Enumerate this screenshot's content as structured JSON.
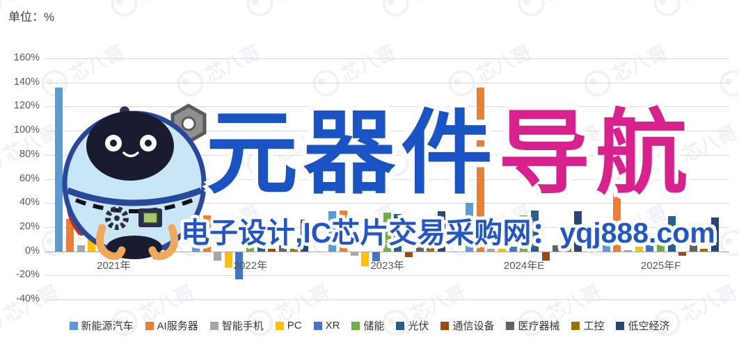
{
  "header": {
    "unit_label": "单位：%"
  },
  "watermark": {
    "title_blue": "元器件",
    "title_magenta": "导航",
    "subtitle": "电子设计,IC芯片交易采购网：yqj888.com",
    "tile_text": "芯八哥",
    "colors": {
      "title_blue": "#1a53c4",
      "title_magenta": "#d9218e",
      "subtitle_blue": "#2356c5"
    }
  },
  "chart_data": {
    "type": "bar",
    "title": "",
    "unit": "%",
    "categories": [
      "2021年",
      "2022年",
      "2023年",
      "2024年E",
      "2025年F"
    ],
    "series": [
      {
        "name": "新能源汽车",
        "color": "#5B9BD5",
        "values": [
          136,
          59,
          33,
          40,
          25
        ]
      },
      {
        "name": "AI服务器",
        "color": "#ED7D31",
        "values": [
          27,
          30,
          34,
          136,
          85
        ]
      },
      {
        "name": "智能手机",
        "color": "#A5A5A5",
        "values": [
          5,
          -7,
          -3,
          2,
          1
        ]
      },
      {
        "name": "PC",
        "color": "#FFC000",
        "values": [
          14,
          -13,
          -12,
          2,
          4
        ]
      },
      {
        "name": "XR",
        "color": "#4472C4",
        "values": [
          8,
          -23,
          -8,
          4,
          7
        ]
      },
      {
        "name": "储能",
        "color": "#70AD47",
        "values": [
          7,
          5,
          32,
          30,
          8
        ]
      },
      {
        "name": "光伏",
        "color": "#255E91",
        "values": [
          8,
          14,
          31,
          34,
          29
        ]
      },
      {
        "name": "通信设备",
        "color": "#9E480E",
        "values": [
          7,
          2,
          -4,
          -7,
          -3
        ]
      },
      {
        "name": "医疗器械",
        "color": "#636363",
        "values": [
          7,
          5,
          4,
          5,
          6
        ]
      },
      {
        "name": "工控",
        "color": "#997300",
        "values": [
          -6,
          2,
          5,
          6,
          2
        ]
      },
      {
        "name": "低空经济",
        "color": "#264478",
        "values": [
          10,
          26,
          33,
          33,
          28
        ]
      }
    ],
    "ylim": [
      -40,
      160
    ],
    "ytick_step": 20,
    "grid": true,
    "legend_position": "bottom"
  }
}
